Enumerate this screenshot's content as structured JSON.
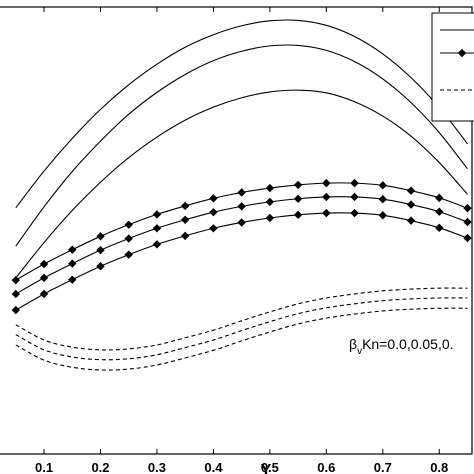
{
  "chart_data": {
    "type": "line",
    "x_label": "Y",
    "annotation": [
      "β",
      "v",
      "Kn=0.0,0.05,0."
    ],
    "xlim": [
      0.022,
      0.858
    ],
    "ylim": [
      0,
      1
    ],
    "xticks": [
      0.1,
      0.2,
      0.3,
      0.4,
      0.5,
      0.6,
      0.7,
      0.8
    ],
    "legend": "upper right",
    "x": [
      0.05,
      0.1,
      0.15,
      0.2,
      0.25,
      0.3,
      0.35,
      0.4,
      0.45,
      0.5,
      0.55,
      0.6,
      0.65,
      0.7,
      0.75,
      0.8,
      0.85
    ],
    "series": [
      {
        "color": "#000000",
        "style": "solid",
        "marker": null,
        "values": [
          0.551,
          0.633,
          0.706,
          0.771,
          0.826,
          0.872,
          0.91,
          0.938,
          0.958,
          0.969,
          0.97,
          0.959,
          0.934,
          0.895,
          0.842,
          0.775,
          0.694
        ]
      },
      {
        "color": "#000000",
        "style": "solid",
        "marker": null,
        "values": [
          0.465,
          0.553,
          0.632,
          0.7,
          0.76,
          0.809,
          0.849,
          0.88,
          0.901,
          0.913,
          0.914,
          0.903,
          0.878,
          0.839,
          0.786,
          0.719,
          0.638
        ]
      },
      {
        "color": "#000000",
        "style": "solid",
        "marker": null,
        "values": [
          0.394,
          0.473,
          0.545,
          0.608,
          0.663,
          0.709,
          0.747,
          0.776,
          0.797,
          0.81,
          0.814,
          0.808,
          0.788,
          0.756,
          0.711,
          0.652,
          0.581
        ]
      },
      {
        "color": "#000000",
        "style": "solid",
        "marker": "diamond",
        "values": [
          0.389,
          0.425,
          0.457,
          0.487,
          0.513,
          0.536,
          0.555,
          0.572,
          0.585,
          0.595,
          0.602,
          0.606,
          0.606,
          0.601,
          0.589,
          0.573,
          0.55
        ]
      },
      {
        "color": "#000000",
        "style": "solid",
        "marker": "diamond",
        "values": [
          0.358,
          0.394,
          0.426,
          0.456,
          0.482,
          0.505,
          0.524,
          0.541,
          0.554,
          0.564,
          0.571,
          0.575,
          0.575,
          0.57,
          0.558,
          0.542,
          0.519
        ]
      },
      {
        "color": "#000000",
        "style": "solid",
        "marker": "diamond",
        "values": [
          0.322,
          0.358,
          0.39,
          0.42,
          0.446,
          0.469,
          0.488,
          0.505,
          0.518,
          0.528,
          0.535,
          0.539,
          0.539,
          0.534,
          0.522,
          0.506,
          0.483
        ]
      },
      {
        "color": "#000000",
        "style": "dashed",
        "marker": null,
        "values": [
          0.289,
          0.255,
          0.239,
          0.233,
          0.235,
          0.244,
          0.26,
          0.277,
          0.298,
          0.318,
          0.336,
          0.349,
          0.358,
          0.365,
          0.369,
          0.371,
          0.371
        ]
      },
      {
        "color": "#000000",
        "style": "dashed",
        "marker": null,
        "values": [
          0.267,
          0.233,
          0.217,
          0.211,
          0.213,
          0.222,
          0.238,
          0.255,
          0.276,
          0.296,
          0.314,
          0.327,
          0.336,
          0.343,
          0.347,
          0.349,
          0.349
        ]
      },
      {
        "color": "#000000",
        "style": "dashed",
        "marker": null,
        "values": [
          0.244,
          0.21,
          0.194,
          0.188,
          0.19,
          0.199,
          0.215,
          0.232,
          0.253,
          0.273,
          0.291,
          0.304,
          0.313,
          0.32,
          0.324,
          0.326,
          0.326
        ]
      }
    ]
  }
}
